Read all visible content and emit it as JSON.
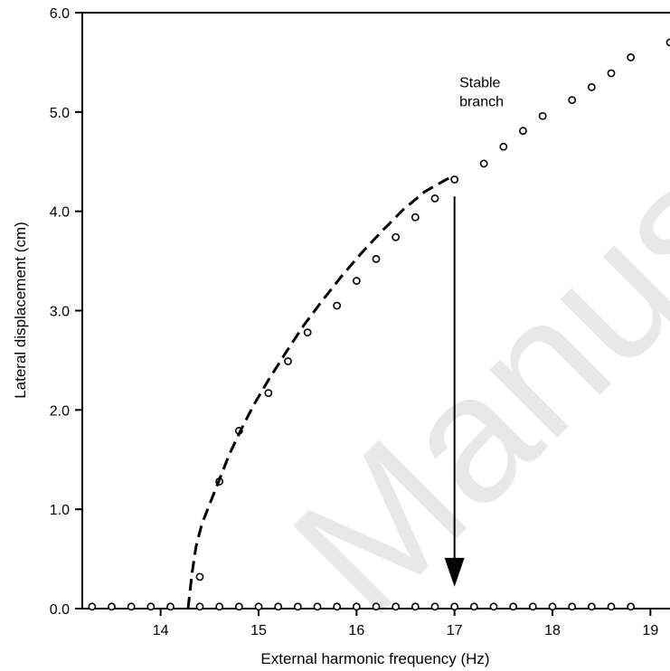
{
  "watermark_text": "Manus",
  "chart_data": {
    "type": "scatter",
    "title": "",
    "xlabel": "External harmonic frequency (Hz)",
    "ylabel": "Lateral displacement (cm)",
    "xlim": [
      13.2,
      19.2
    ],
    "ylim": [
      0.0,
      6.0
    ],
    "x_ticks": [
      14,
      15,
      16,
      17,
      18,
      19
    ],
    "y_ticks": [
      0.0,
      1.0,
      2.0,
      3.0,
      4.0,
      5.0,
      6.0
    ],
    "x_tick_labels": [
      "14",
      "15",
      "16",
      "17",
      "18",
      "19"
    ],
    "y_tick_labels": [
      "0.0",
      "1.0",
      "2.0",
      "3.0",
      "4.0",
      "5.0",
      "6.0"
    ],
    "grid": false,
    "series": [
      {
        "marker": "open-circle",
        "x": [
          14.4,
          14.6,
          14.8,
          15.1,
          15.3,
          15.5,
          15.8,
          16.0,
          16.2,
          16.4,
          16.6,
          16.8,
          17.0,
          17.3,
          17.5,
          17.7,
          17.9,
          18.2,
          18.4,
          18.6,
          18.8,
          19.2
        ],
        "y": [
          0.32,
          1.28,
          1.79,
          2.17,
          2.49,
          2.78,
          3.05,
          3.3,
          3.52,
          3.74,
          3.94,
          4.13,
          4.32,
          4.48,
          4.65,
          4.81,
          4.96,
          5.12,
          5.25,
          5.39,
          5.55,
          5.7
        ]
      },
      {
        "marker": "open-circle",
        "x": [
          13.3,
          13.5,
          13.7,
          13.9,
          14.1,
          14.4,
          14.6,
          14.8,
          15.0,
          15.2,
          15.4,
          15.6,
          15.8,
          16.0,
          16.2,
          16.4,
          16.6,
          16.8,
          17.0,
          17.2,
          17.4,
          17.6,
          17.8,
          18.0,
          18.2,
          18.4,
          18.6,
          18.8
        ],
        "y": [
          0.02,
          0.02,
          0.02,
          0.02,
          0.02,
          0.02,
          0.02,
          0.02,
          0.02,
          0.02,
          0.02,
          0.02,
          0.02,
          0.02,
          0.02,
          0.02,
          0.02,
          0.02,
          0.02,
          0.02,
          0.02,
          0.02,
          0.02,
          0.02,
          0.02,
          0.02,
          0.02,
          0.02
        ]
      },
      {
        "style": "dashed-line",
        "x": [
          14.28,
          14.32,
          14.36,
          14.42,
          14.5,
          14.6,
          14.7,
          14.82,
          14.95,
          15.1,
          15.28,
          15.46,
          15.65,
          15.85,
          16.05,
          16.26,
          16.48,
          16.7,
          16.88,
          16.97
        ],
        "y": [
          0.0,
          0.35,
          0.62,
          0.85,
          1.05,
          1.3,
          1.55,
          1.8,
          2.05,
          2.3,
          2.58,
          2.85,
          3.1,
          3.35,
          3.58,
          3.8,
          4.02,
          4.2,
          4.3,
          4.35
        ]
      }
    ],
    "annotations": [
      {
        "text": [
          "Stable",
          "branch"
        ],
        "x": 17.05,
        "y": 5.05
      },
      {
        "type": "arrow",
        "x": 17.0,
        "from_y": 4.15,
        "to_y": 0.22
      }
    ]
  }
}
